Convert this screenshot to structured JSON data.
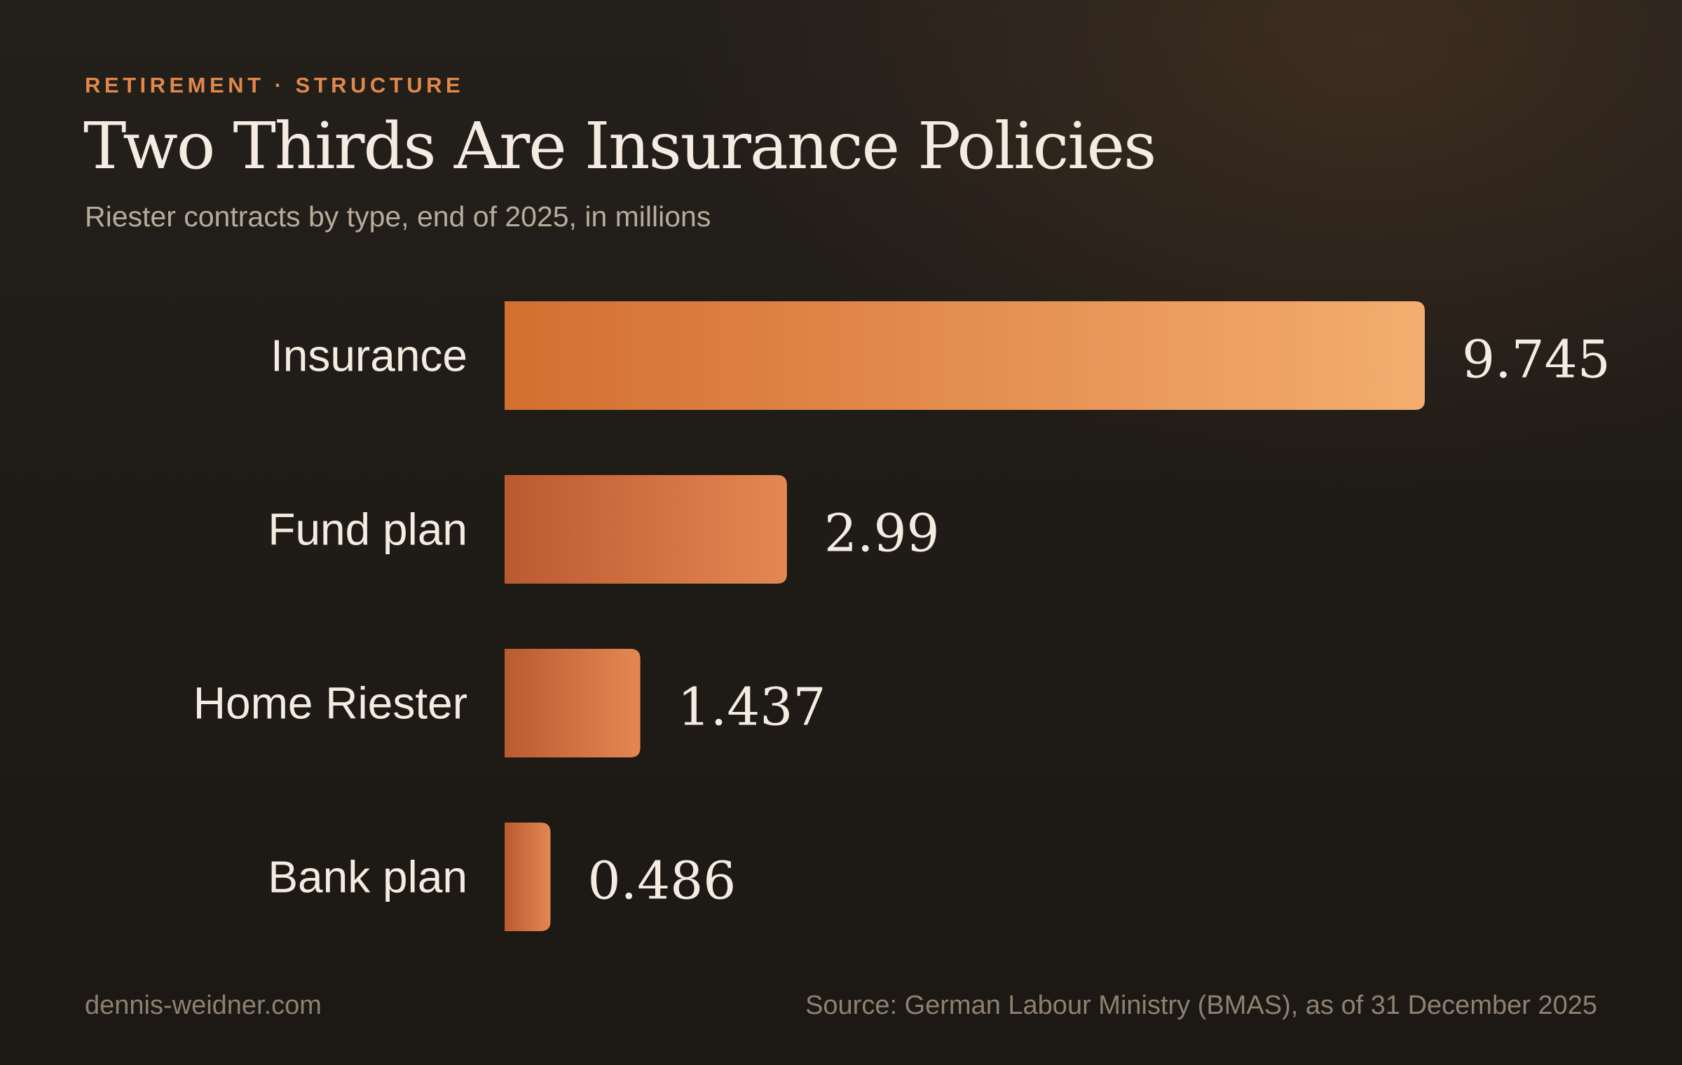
{
  "eyebrow": "RETIREMENT · STRUCTURE",
  "title": "Two Thirds Are Insurance Policies",
  "subtitle": "Riester contracts by type, end of 2025, in millions",
  "footer": {
    "site": "dennis-weidner.com",
    "source": "Source: German Labour Ministry (BMAS), as of 31 December 2025"
  },
  "colors": {
    "accent": "#e2874a",
    "bar_light": "#f4ad70",
    "bar_dark": "#b95a30",
    "text": "#f4ece1",
    "muted": "#8d8171"
  },
  "chart_data": {
    "type": "bar",
    "orientation": "horizontal",
    "categories": [
      "Insurance",
      "Fund plan",
      "Home Riester",
      "Bank plan"
    ],
    "values": [
      9.745,
      2.99,
      1.437,
      0.486
    ],
    "value_labels": [
      "9.745",
      "2.99",
      "1.437",
      "0.486"
    ],
    "grid": false,
    "legend": "none"
  }
}
